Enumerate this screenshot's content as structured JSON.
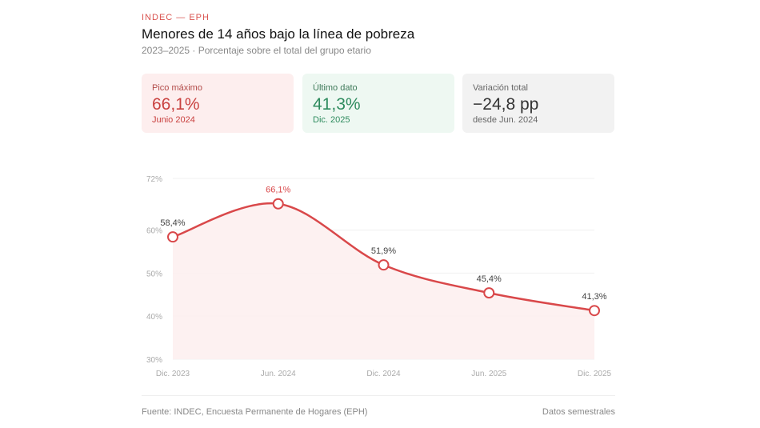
{
  "header": {
    "kicker": "INDEC — EPH",
    "title": "Menores de 14 años bajo la línea de pobreza",
    "subtitle": "2023–2025 · Porcentaje sobre el total del grupo etario"
  },
  "cards": [
    {
      "label": "Pico máximo",
      "value": "66,1%",
      "sub": "Junio 2024"
    },
    {
      "label": "Último dato",
      "value": "41,3%",
      "sub": "Dic. 2025"
    },
    {
      "label": "Variación total",
      "value": "−24,8 pp",
      "sub": "desde Jun. 2024"
    }
  ],
  "footer": {
    "source": "Fuente: INDEC, Encuesta Permanente de Hogares (EPH)",
    "note": "Datos semestrales"
  },
  "colors": {
    "line": "#d9484a",
    "fill": "#fdeeee",
    "peak_label": "#d9484a"
  },
  "chart_data": {
    "type": "line",
    "categories": [
      "Dic. 2023",
      "Jun. 2024",
      "Dic. 2024",
      "Jun. 2025",
      "Dic. 2025"
    ],
    "values": [
      58.4,
      66.1,
      51.9,
      45.4,
      41.3
    ],
    "data_labels": [
      "58,4%",
      "66,1%",
      "51,9%",
      "45,4%",
      "41,3%"
    ],
    "ylim": [
      30,
      72
    ],
    "yticks": [
      30,
      40,
      50,
      60,
      72
    ],
    "ytick_labels": [
      "30%",
      "40%",
      "50%",
      "60%",
      "72%"
    ],
    "grid": true,
    "area_fill": true
  }
}
